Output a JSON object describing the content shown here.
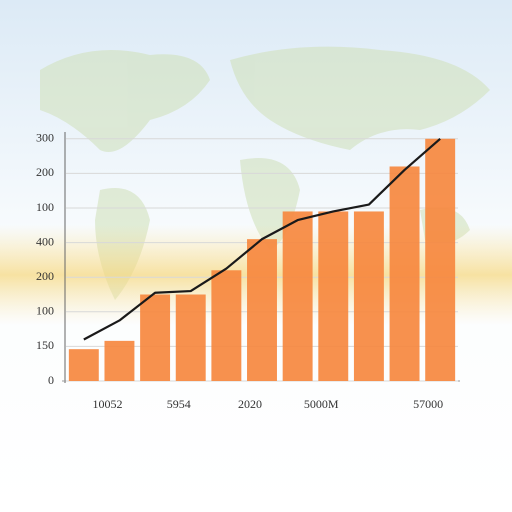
{
  "chart_data": {
    "type": "bar",
    "categories": [
      null,
      "10052",
      null,
      "5954",
      null,
      "2020",
      null,
      "5000M",
      null,
      null,
      "57000"
    ],
    "series": [
      {
        "type": "bar",
        "color": "#f6883f",
        "values": [
          0.92,
          1.16,
          2.5,
          2.5,
          3.2,
          4.1,
          4.9,
          4.9,
          4.9,
          6.2,
          7.0
        ]
      },
      {
        "type": "line",
        "color": "#1a1a1a",
        "values": [
          1.2,
          1.75,
          2.55,
          2.6,
          3.25,
          4.1,
          4.65,
          4.9,
          5.1,
          6.1,
          7.0
        ]
      }
    ],
    "ylim": [
      0,
      7.2
    ],
    "yticks": [
      {
        "value": 0,
        "label": "0"
      },
      {
        "value": 1,
        "label": "150"
      },
      {
        "value": 2,
        "label": "100"
      },
      {
        "value": 3,
        "label": "200"
      },
      {
        "value": 4,
        "label": "400"
      },
      {
        "value": 5,
        "label": "100"
      },
      {
        "value": 6,
        "label": "200"
      },
      {
        "value": 7,
        "label": "300"
      }
    ],
    "grid": true
  }
}
